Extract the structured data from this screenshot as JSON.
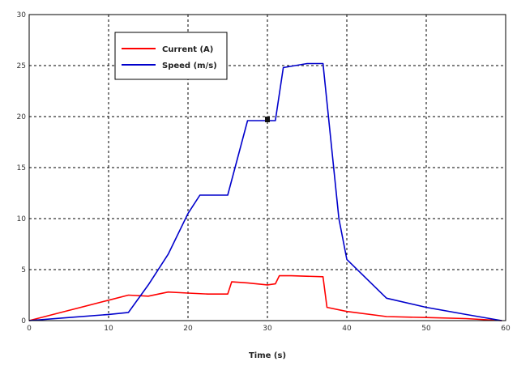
{
  "chart_data": {
    "type": "line",
    "title": "",
    "xlabel": "Time (s)",
    "ylabel": "",
    "xlim": [
      0,
      60
    ],
    "ylim": [
      0,
      30
    ],
    "xticks": [
      0,
      10,
      20,
      30,
      40,
      50,
      60
    ],
    "yticks": [
      0,
      5,
      10,
      15,
      20,
      25,
      30
    ],
    "grid": true,
    "legend": "top-left",
    "series": [
      {
        "name": "Current (A)",
        "color": "#ff0000",
        "x": [
          0,
          5,
          10,
          12.5,
          15,
          17.5,
          20,
          22.5,
          25,
          25.5,
          27.5,
          30,
          31,
          31.5,
          33,
          37,
          37.5,
          40,
          45,
          50,
          55,
          59.5
        ],
        "y": [
          0,
          1,
          2,
          2.5,
          2.4,
          2.8,
          2.7,
          2.6,
          2.6,
          3.8,
          3.7,
          3.5,
          3.6,
          4.4,
          4.4,
          4.3,
          1.3,
          0.9,
          0.4,
          0.3,
          0.2,
          0
        ]
      },
      {
        "name": "Speed (m/s)",
        "color": "#0000cc",
        "x": [
          0,
          5,
          10,
          12.5,
          15,
          17.5,
          20,
          21.5,
          25,
          27.5,
          30,
          31,
          32,
          35,
          37,
          39,
          40,
          45,
          50,
          55,
          59.5
        ],
        "y": [
          0,
          0.3,
          0.6,
          0.8,
          3.5,
          6.5,
          10.5,
          12.3,
          12.3,
          19.6,
          19.6,
          19.6,
          24.8,
          25.2,
          25.2,
          10,
          6,
          2.2,
          1.3,
          0.6,
          0
        ]
      }
    ]
  }
}
